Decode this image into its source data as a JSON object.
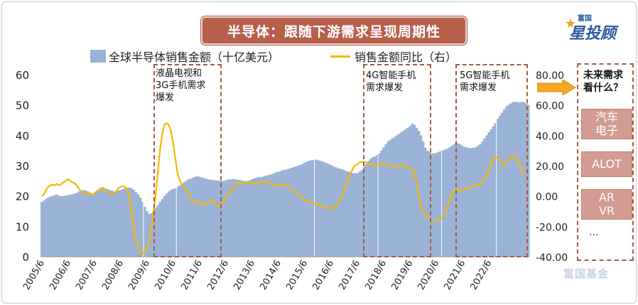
{
  "title": "半导体：跟随下游需求呈现周期性",
  "brand": {
    "small": "富国",
    "big": "星投顾",
    "watermark": "富国基金"
  },
  "legend": {
    "bar": "全球半导体销售金额（十亿美元）",
    "line": "销售金额同比（右）"
  },
  "annotations": [
    {
      "id": "lcd",
      "text": [
        "液晶电视和",
        "3G手机需求",
        "爆发"
      ]
    },
    {
      "id": "4g",
      "text": [
        "4G智能手机",
        "需求爆发"
      ]
    },
    {
      "id": "5g",
      "text": [
        "5G智能手机",
        "需求爆发"
      ]
    }
  ],
  "side_panel": {
    "question": [
      "未来需求",
      "看什么？"
    ],
    "items": [
      {
        "label": [
          "汽车",
          "电子"
        ]
      },
      {
        "label": [
          "ALOT"
        ]
      },
      {
        "label": [
          "AR",
          "VR"
        ]
      }
    ],
    "more": "..."
  },
  "colors": {
    "bar": "#9ab3d6",
    "line": "#f5b800",
    "title_bg": "#b6604b",
    "dash": "#a65a47",
    "chip": "#d39c90"
  },
  "chart_data": {
    "type": "bar+line",
    "x_start": "2005/6",
    "x_labels": [
      "2005/6",
      "2006/6",
      "2007/6",
      "2008/6",
      "2009/6",
      "2010/6",
      "2011/6",
      "2012/6",
      "2013/6",
      "2014/6",
      "2015/6",
      "2016/6",
      "2017/6",
      "2018/6",
      "2019/6",
      "2020/6",
      "2021/6",
      "2022/6"
    ],
    "left_axis": {
      "min": 0,
      "max": 60,
      "ticks": [
        "0",
        "10",
        "20",
        "30",
        "40",
        "50",
        "60"
      ]
    },
    "right_axis": {
      "min": -40,
      "max": 80,
      "ticks": [
        "-40.00",
        "-20.00",
        "0.00",
        "20.00",
        "40.00",
        "60.00",
        "80.00"
      ]
    },
    "series": [
      {
        "name": "全球半导体销售金额（十亿美元）",
        "axis": "left",
        "type": "bar",
        "values": [
          18,
          18.5,
          19,
          19.5,
          19.8,
          20,
          20.3,
          20.5,
          20,
          20,
          20,
          20.2,
          20.3,
          20.5,
          20.5,
          20.8,
          21,
          21.5,
          21.8,
          22,
          21.8,
          21.5,
          21,
          20.8,
          21,
          21.3,
          21.8,
          22.3,
          22.5,
          22.5,
          22.3,
          22,
          21.8,
          21.5,
          21.5,
          21.8,
          22,
          22.3,
          22.5,
          22.7,
          22.8,
          22.5,
          22,
          21.3,
          20.5,
          19.5,
          18,
          16.5,
          15,
          14,
          14.3,
          15,
          16,
          17,
          18,
          19,
          20,
          20.8,
          21.5,
          22,
          22.3,
          22.5,
          23,
          23.5,
          24,
          24.5,
          25,
          25.5,
          25.7,
          26,
          26.3,
          26.5,
          26.3,
          26.1,
          25.9,
          25.7,
          25.5,
          25.4,
          25.3,
          25.2,
          25.1,
          25,
          25,
          25,
          25.2,
          25.4,
          25.5,
          25.6,
          25.5,
          25.4,
          25.3,
          25.2,
          25,
          24.9,
          25,
          25.2,
          25.5,
          25.8,
          26,
          26.2,
          26.2,
          26.4,
          26.6,
          26.8,
          27,
          27.2,
          27.5,
          27.8,
          28,
          28.2,
          28.5,
          28.6,
          28.8,
          29,
          29.3,
          29.5,
          29.8,
          30,
          30.2,
          30.6,
          31,
          31.3,
          31.6,
          31.8,
          31.9,
          32,
          31.8,
          31.6,
          31.4,
          31.1,
          30.8,
          30.5,
          30.2,
          29.8,
          29.5,
          29.2,
          29,
          28.8,
          28.5,
          28.2,
          28,
          27.8,
          27.5,
          27.5,
          27.5,
          28,
          28.5,
          29.5,
          30.5,
          31.5,
          32.3,
          32.8,
          33,
          33.5,
          34,
          35,
          36,
          37,
          38,
          38.5,
          39,
          39.5,
          40,
          40.5,
          41,
          41.5,
          42,
          42.5,
          43,
          43.8,
          43.5,
          42.5,
          41.5,
          40,
          38,
          36,
          35,
          34.5,
          34,
          34,
          34.2,
          34.5,
          34.8,
          35,
          35.3,
          35.6,
          36,
          36.5,
          37,
          37.5,
          37.3,
          37,
          36.5,
          36.2,
          36,
          35.8,
          35.8,
          35.9,
          36,
          36.5,
          37,
          38,
          39,
          40,
          41,
          42,
          43,
          44,
          45.5,
          46.5,
          47.5,
          48.5,
          49.5,
          50,
          50.5,
          51,
          51,
          51,
          50.8,
          51,
          51,
          50.5,
          50
        ]
      },
      {
        "name": "销售金额同比（右）",
        "axis": "right",
        "type": "line",
        "values": [
          0,
          1,
          4,
          6,
          7,
          7.5,
          7,
          8,
          7,
          8,
          9,
          10,
          11,
          10,
          9,
          8.5,
          7,
          5,
          3,
          2,
          1,
          1.5,
          2,
          1,
          1.5,
          3,
          4,
          5,
          5.5,
          4,
          3,
          2,
          1.5,
          2,
          3,
          5,
          6,
          6.5,
          6,
          5,
          -1,
          -10,
          -20,
          -28,
          -33,
          -37,
          -38,
          -37,
          -35,
          -30,
          -22,
          -12,
          0,
          15,
          30,
          40,
          47,
          48,
          47,
          43,
          35,
          25,
          15,
          10,
          8,
          6,
          4,
          1,
          -2,
          -3,
          -4,
          -4,
          -5,
          -5.5,
          -5.5,
          -5,
          -4,
          -3,
          -3,
          -4,
          -6,
          -7,
          -6,
          -4,
          -1,
          1,
          3,
          5,
          7,
          8,
          8.5,
          8,
          8.5,
          9,
          9.5,
          9,
          8.5,
          8,
          8,
          8.5,
          9,
          9.5,
          9.5,
          9,
          8.5,
          8,
          7.5,
          7,
          7,
          7,
          7.5,
          7,
          6.5,
          6,
          5,
          4,
          2.5,
          1,
          -0.5,
          -1.5,
          -2.5,
          -3,
          -4,
          -4.5,
          -5,
          -5.5,
          -5.5,
          -6,
          -6.5,
          -7,
          -7.5,
          -8,
          -8,
          -8,
          -7,
          -5,
          -3,
          0,
          4,
          8,
          12,
          15,
          18,
          20,
          21,
          22,
          22.5,
          22.5,
          22,
          21.5,
          21,
          20.5,
          20,
          20,
          20.5,
          21,
          21.5,
          21,
          20.5,
          20,
          19.5,
          19,
          19.5,
          20,
          20.5,
          20,
          19.5,
          19,
          18.5,
          18,
          15,
          10,
          0,
          -6,
          -10,
          -13,
          -14,
          -15,
          -16,
          -16.5,
          -16,
          -15.5,
          -15,
          -14,
          -12,
          -8,
          -3,
          1,
          3.5,
          4,
          4,
          3.5,
          4,
          4.5,
          5,
          5.5,
          6,
          6.5,
          7,
          7.5,
          8,
          9,
          11,
          14,
          17,
          21,
          24,
          25.5,
          25,
          23,
          21,
          20,
          22,
          24,
          26,
          27,
          26,
          24,
          21,
          17,
          14
        ]
      }
    ]
  }
}
